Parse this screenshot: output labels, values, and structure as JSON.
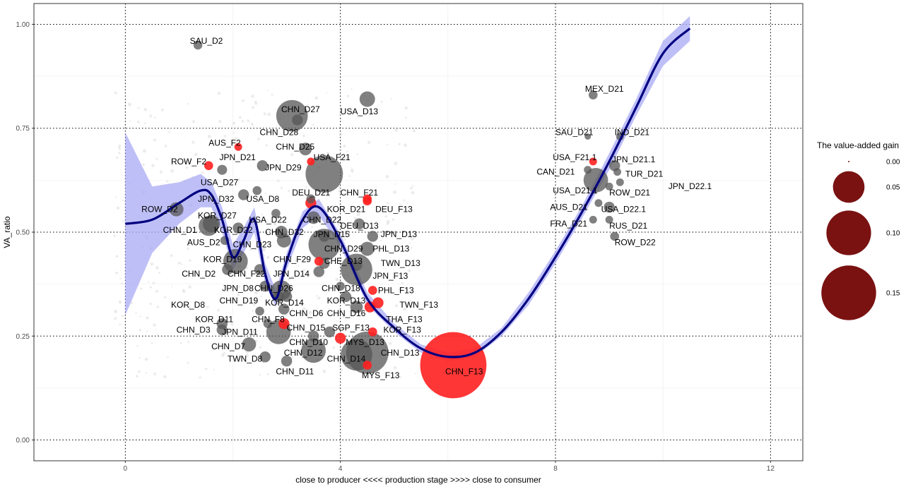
{
  "chart_data": {
    "type": "scatter",
    "title": "",
    "xlabel": "close to producer  <<<<  production stage  >>>>  close to consumer",
    "ylabel": "VA_ratio",
    "xlim": [
      -1.7,
      12.6
    ],
    "ylim": [
      -0.05,
      1.05
    ],
    "x_ticks": [
      0,
      4,
      8,
      12
    ],
    "x_tick_labels": [
      "0",
      "4",
      "8",
      "12"
    ],
    "y_ticks": [
      0,
      0.25,
      0.5,
      0.75,
      1.0
    ],
    "y_tick_labels": [
      "0.00",
      "0.25",
      "0.50",
      "0.75",
      "1.00"
    ],
    "grid": true,
    "dotted_reference_lines": true,
    "colors": {
      "domestic_point": "#555555",
      "foreign_point": "#ff2020",
      "smooth_line": "#000080",
      "smooth_band": "#a9a9f5",
      "legend_point": "#7a1212"
    },
    "legend": {
      "title": "The value-added gain",
      "position": "right",
      "entries": [
        {
          "label": "0.00",
          "value": 0.001
        },
        {
          "label": "0.05",
          "value": 0.05
        },
        {
          "label": "0.10",
          "value": 0.1
        },
        {
          "label": "0.15",
          "value": 0.15
        }
      ]
    },
    "smooth": {
      "x": [
        0,
        0.5,
        1.0,
        1.4,
        1.6,
        1.8,
        2.0,
        2.2,
        2.4,
        2.6,
        2.8,
        3.0,
        3.3,
        3.6,
        4.0,
        4.5,
        5.0,
        5.5,
        6.0,
        6.5,
        7.0,
        7.5,
        8.0,
        8.5,
        9.0,
        9.5,
        10.0,
        10.5
      ],
      "y": [
        0.52,
        0.53,
        0.57,
        0.6,
        0.59,
        0.53,
        0.44,
        0.48,
        0.53,
        0.4,
        0.34,
        0.43,
        0.53,
        0.56,
        0.48,
        0.34,
        0.27,
        0.22,
        0.2,
        0.21,
        0.26,
        0.34,
        0.44,
        0.55,
        0.67,
        0.8,
        0.93,
        0.99
      ],
      "band_half_width": [
        0.22,
        0.08,
        0.05,
        0.04,
        0.03,
        0.03,
        0.03,
        0.03,
        0.03,
        0.025,
        0.02,
        0.02,
        0.02,
        0.02,
        0.015,
        0.015,
        0.01,
        0.01,
        0.01,
        0.01,
        0.01,
        0.015,
        0.015,
        0.015,
        0.02,
        0.02,
        0.03,
        0.03
      ]
    },
    "points": [
      {
        "label": "SAU_D2",
        "x": 1.35,
        "y": 0.95,
        "gain": 0.004,
        "group": "D"
      },
      {
        "label": "MEX_D21",
        "x": 8.7,
        "y": 0.83,
        "gain": 0.004,
        "group": "D"
      },
      {
        "label": "CHN_D27",
        "x": 3.1,
        "y": 0.78,
        "gain": 0.05,
        "group": "D"
      },
      {
        "label": "USA_D13",
        "x": 4.5,
        "y": 0.82,
        "gain": 0.012,
        "group": "D"
      },
      {
        "label": "CHN_D28",
        "x": 3.2,
        "y": 0.77,
        "gain": 0.006,
        "group": "D"
      },
      {
        "label": "SAU_D21",
        "x": 8.6,
        "y": 0.73,
        "gain": 0.002,
        "group": "D"
      },
      {
        "label": "IND_D21",
        "x": 9.2,
        "y": 0.73,
        "gain": 0.003,
        "group": "D"
      },
      {
        "label": "CHN_D25",
        "x": 3.35,
        "y": 0.7,
        "gain": 0.008,
        "group": "D"
      },
      {
        "label": "AUS_F2",
        "x": 2.1,
        "y": 0.705,
        "gain": 0.003,
        "group": "F"
      },
      {
        "label": "USA_F21",
        "x": 3.45,
        "y": 0.67,
        "gain": 0.003,
        "group": "F"
      },
      {
        "label": "JPN_D21",
        "x": 2.55,
        "y": 0.66,
        "gain": 0.006,
        "group": "D"
      },
      {
        "label": "JPN_D29",
        "x": 3.7,
        "y": 0.64,
        "gain": 0.07,
        "group": "D"
      },
      {
        "label": "ROW_F2",
        "x": 1.55,
        "y": 0.66,
        "gain": 0.004,
        "group": "F"
      },
      {
        "label": "USA_F21.1",
        "x": 8.7,
        "y": 0.67,
        "gain": 0.003,
        "group": "F"
      },
      {
        "label": "JPN_D21.1",
        "x": 9.1,
        "y": 0.66,
        "gain": 0.006,
        "group": "D"
      },
      {
        "label": "CAN_D21",
        "x": 8.6,
        "y": 0.65,
        "gain": 0.003,
        "group": "D"
      },
      {
        "label": "TUR_D21",
        "x": 9.15,
        "y": 0.645,
        "gain": 0.003,
        "group": "D"
      },
      {
        "label": "USA_D27",
        "x": 1.8,
        "y": 0.65,
        "gain": 0.005,
        "group": "D"
      },
      {
        "label": "JPN_D22.1",
        "x": 9.2,
        "y": 0.62,
        "gain": 0.003,
        "group": "D"
      },
      {
        "label": "USA_D21.1",
        "x": 8.75,
        "y": 0.625,
        "gain": 0.03,
        "group": "D"
      },
      {
        "label": "ROW_D21",
        "x": 9.0,
        "y": 0.61,
        "gain": 0.003,
        "group": "D"
      },
      {
        "label": "DEU_D21",
        "x": 3.45,
        "y": 0.58,
        "gain": 0.004,
        "group": "D"
      },
      {
        "label": "CHN_F21",
        "x": 4.5,
        "y": 0.58,
        "gain": 0.004,
        "group": "F"
      },
      {
        "label": "JPN_D32",
        "x": 2.2,
        "y": 0.59,
        "gain": 0.006,
        "group": "D"
      },
      {
        "label": "USA_D8",
        "x": 2.45,
        "y": 0.6,
        "gain": 0.004,
        "group": "D"
      },
      {
        "label": "KOR_D21",
        "x": 3.45,
        "y": 0.57,
        "gain": 0.006,
        "group": "F"
      },
      {
        "label": "DEU_F13",
        "x": 4.5,
        "y": 0.575,
        "gain": 0.004,
        "group": "F"
      },
      {
        "label": "AUS_D21",
        "x": 8.8,
        "y": 0.57,
        "gain": 0.003,
        "group": "D"
      },
      {
        "label": "USA_D22.1",
        "x": 9.0,
        "y": 0.56,
        "gain": 0.006,
        "group": "D"
      },
      {
        "label": "ROW_D2",
        "x": 0.95,
        "y": 0.555,
        "gain": 0.01,
        "group": "D"
      },
      {
        "label": "KOR_D27",
        "x": 1.6,
        "y": 0.52,
        "gain": 0.015,
        "group": "D"
      },
      {
        "label": "USA_D22",
        "x": 2.8,
        "y": 0.545,
        "gain": 0.004,
        "group": "D"
      },
      {
        "label": "CHN_D22",
        "x": 3.5,
        "y": 0.535,
        "gain": 0.008,
        "group": "D"
      },
      {
        "label": "FRA_D21",
        "x": 8.7,
        "y": 0.53,
        "gain": 0.003,
        "group": "D"
      },
      {
        "label": "RUS_D21",
        "x": 9.0,
        "y": 0.53,
        "gain": 0.003,
        "group": "D"
      },
      {
        "label": "DEU_D13",
        "x": 4.35,
        "y": 0.52,
        "gain": 0.006,
        "group": "D"
      },
      {
        "label": "CHN_D1",
        "x": 1.55,
        "y": 0.515,
        "gain": 0.02,
        "group": "D"
      },
      {
        "label": "KOR_D22",
        "x": 2.1,
        "y": 0.51,
        "gain": 0.006,
        "group": "D"
      },
      {
        "label": "CHN_D32",
        "x": 2.9,
        "y": 0.5,
        "gain": 0.008,
        "group": "D"
      },
      {
        "label": "JPN_D15",
        "x": 3.7,
        "y": 0.49,
        "gain": 0.006,
        "group": "D"
      },
      {
        "label": "JPN_D13",
        "x": 4.6,
        "y": 0.49,
        "gain": 0.006,
        "group": "D"
      },
      {
        "label": "AUS_D2",
        "x": 1.85,
        "y": 0.48,
        "gain": 0.004,
        "group": "D"
      },
      {
        "label": "CHN_D23",
        "x": 2.95,
        "y": 0.48,
        "gain": 0.01,
        "group": "D"
      },
      {
        "label": "CHN_D29",
        "x": 3.7,
        "y": 0.47,
        "gain": 0.05,
        "group": "D"
      },
      {
        "label": "ROW_D22",
        "x": 9.1,
        "y": 0.49,
        "gain": 0.004,
        "group": "D"
      },
      {
        "label": "PHL_D13",
        "x": 4.5,
        "y": 0.46,
        "gain": 0.01,
        "group": "D"
      },
      {
        "label": "KOR_D19",
        "x": 2.05,
        "y": 0.43,
        "gain": 0.03,
        "group": "D"
      },
      {
        "label": "CHN_F29",
        "x": 3.6,
        "y": 0.43,
        "gain": 0.004,
        "group": "F"
      },
      {
        "label": "CHE_D13",
        "x": 3.7,
        "y": 0.425,
        "gain": 0.006,
        "group": "D"
      },
      {
        "label": "TWN_D13",
        "x": 4.3,
        "y": 0.42,
        "gain": 0.006,
        "group": "D"
      },
      {
        "label": "CHN_D2",
        "x": 1.9,
        "y": 0.41,
        "gain": 0.006,
        "group": "D"
      },
      {
        "label": "CHN_F22",
        "x": 2.5,
        "y": 0.41,
        "gain": 0.006,
        "group": "D"
      },
      {
        "label": "JPN_D14",
        "x": 3.6,
        "y": 0.405,
        "gain": 0.006,
        "group": "D"
      },
      {
        "label": "JPN_F13",
        "x": 4.3,
        "y": 0.41,
        "gain": 0.05,
        "group": "D"
      },
      {
        "label": "JPN_D8",
        "x": 2.6,
        "y": 0.37,
        "gain": 0.006,
        "group": "D"
      },
      {
        "label": "CHN_D26",
        "x": 2.9,
        "y": 0.36,
        "gain": 0.02,
        "group": "D"
      },
      {
        "label": "CHN_D18",
        "x": 4.0,
        "y": 0.37,
        "gain": 0.004,
        "group": "D"
      },
      {
        "label": "PHL_F13",
        "x": 4.6,
        "y": 0.36,
        "gain": 0.004,
        "group": "F"
      },
      {
        "label": "CHN_D19",
        "x": 2.85,
        "y": 0.345,
        "gain": 0.006,
        "group": "D"
      },
      {
        "label": "KOR_D14",
        "x": 3.0,
        "y": 0.345,
        "gain": 0.006,
        "group": "D"
      },
      {
        "label": "KOR_D13",
        "x": 4.1,
        "y": 0.345,
        "gain": 0.006,
        "group": "D"
      },
      {
        "label": "TWN_F13",
        "x": 4.7,
        "y": 0.33,
        "gain": 0.006,
        "group": "F"
      },
      {
        "label": "KOR_D8",
        "x": 2.5,
        "y": 0.31,
        "gain": 0.004,
        "group": "D"
      },
      {
        "label": "CHN_D6",
        "x": 2.95,
        "y": 0.315,
        "gain": 0.006,
        "group": "D"
      },
      {
        "label": "CHN_D16",
        "x": 4.3,
        "y": 0.32,
        "gain": 0.008,
        "group": "D"
      },
      {
        "label": "THA_F13",
        "x": 4.55,
        "y": 0.32,
        "gain": 0.006,
        "group": "F"
      },
      {
        "label": "KOR_D11",
        "x": 1.8,
        "y": 0.28,
        "gain": 0.006,
        "group": "D"
      },
      {
        "label": "CHN_F8",
        "x": 2.65,
        "y": 0.28,
        "gain": 0.004,
        "group": "D"
      },
      {
        "label": "CHN_D15",
        "x": 2.95,
        "y": 0.28,
        "gain": 0.006,
        "group": "F"
      },
      {
        "label": "SGP_F13",
        "x": 3.8,
        "y": 0.26,
        "gain": 0.006,
        "group": "D"
      },
      {
        "label": "KOR_F13",
        "x": 4.6,
        "y": 0.26,
        "gain": 0.004,
        "group": "F"
      },
      {
        "label": "CHN_D3",
        "x": 1.8,
        "y": 0.265,
        "gain": 0.006,
        "group": "D"
      },
      {
        "label": "JPN_D11",
        "x": 2.85,
        "y": 0.26,
        "gain": 0.03,
        "group": "D"
      },
      {
        "label": "CHN_D10",
        "x": 3.5,
        "y": 0.25,
        "gain": 0.006,
        "group": "D"
      },
      {
        "label": "MYS_D13",
        "x": 4.0,
        "y": 0.245,
        "gain": 0.006,
        "group": "F"
      },
      {
        "label": "CHN_D7",
        "x": 2.3,
        "y": 0.23,
        "gain": 0.01,
        "group": "D"
      },
      {
        "label": "CHN_D12",
        "x": 3.5,
        "y": 0.215,
        "gain": 0.03,
        "group": "D"
      },
      {
        "label": "CHN_D14",
        "x": 4.3,
        "y": 0.205,
        "gain": 0.05,
        "group": "D"
      },
      {
        "label": "CHN_D13",
        "x": 4.5,
        "y": 0.21,
        "gain": 0.09,
        "group": "D"
      },
      {
        "label": "TWN_D8",
        "x": 2.6,
        "y": 0.2,
        "gain": 0.006,
        "group": "D"
      },
      {
        "label": "CHN_D11",
        "x": 3.0,
        "y": 0.19,
        "gain": 0.006,
        "group": "D"
      },
      {
        "label": "MYS_F13",
        "x": 4.5,
        "y": 0.18,
        "gain": 0.004,
        "group": "F"
      },
      {
        "label": "CHN_F13",
        "x": 6.1,
        "y": 0.18,
        "gain": 0.22,
        "group": "F"
      }
    ],
    "labels": [
      {
        "text": "SAU_D2",
        "x": 1.2,
        "y": 0.96
      },
      {
        "text": "MEX_D21",
        "x": 8.55,
        "y": 0.845
      },
      {
        "text": "CHN_D27",
        "x": 2.9,
        "y": 0.795
      },
      {
        "text": "USA_D13",
        "x": 4.0,
        "y": 0.79
      },
      {
        "text": "CHN_D28",
        "x": 2.5,
        "y": 0.74
      },
      {
        "text": "SAU_D21",
        "x": 8.0,
        "y": 0.74
      },
      {
        "text": "IND_D21",
        "x": 9.1,
        "y": 0.74
      },
      {
        "text": "CHN_D25",
        "x": 2.8,
        "y": 0.705
      },
      {
        "text": "AUS_F2",
        "x": 1.55,
        "y": 0.715
      },
      {
        "text": "USA_F21",
        "x": 3.5,
        "y": 0.68
      },
      {
        "text": "JPN_D21",
        "x": 1.75,
        "y": 0.68
      },
      {
        "text": "JPN_D29",
        "x": 2.6,
        "y": 0.655
      },
      {
        "text": "ROW_F2",
        "x": 0.85,
        "y": 0.67
      },
      {
        "text": "USA_F21.1",
        "x": 7.95,
        "y": 0.68
      },
      {
        "text": "JPN_D21.1",
        "x": 9.05,
        "y": 0.675
      },
      {
        "text": "CAN_D21",
        "x": 7.65,
        "y": 0.645
      },
      {
        "text": "TUR_D21",
        "x": 9.3,
        "y": 0.64
      },
      {
        "text": "USA_D27",
        "x": 1.4,
        "y": 0.62
      },
      {
        "text": "JPN_D22.1",
        "x": 10.1,
        "y": 0.61
      },
      {
        "text": "USA_D21.1",
        "x": 7.95,
        "y": 0.6
      },
      {
        "text": "ROW_D21",
        "x": 9.0,
        "y": 0.595
      },
      {
        "text": "DEU_D21",
        "x": 3.1,
        "y": 0.595
      },
      {
        "text": "CHN_F21",
        "x": 4.0,
        "y": 0.595
      },
      {
        "text": "JPN_D32",
        "x": 1.35,
        "y": 0.58
      },
      {
        "text": "USA_D8",
        "x": 2.25,
        "y": 0.58
      },
      {
        "text": "KOR_D21",
        "x": 3.75,
        "y": 0.555
      },
      {
        "text": "DEU_F13",
        "x": 4.65,
        "y": 0.555
      },
      {
        "text": "AUS_D21",
        "x": 7.9,
        "y": 0.56
      },
      {
        "text": "USA_D22.1",
        "x": 8.85,
        "y": 0.555
      },
      {
        "text": "ROW_D2",
        "x": 0.3,
        "y": 0.555
      },
      {
        "text": "KOR_D27",
        "x": 1.35,
        "y": 0.54
      },
      {
        "text": "USA_D22",
        "x": 2.3,
        "y": 0.53
      },
      {
        "text": "CHN_D22",
        "x": 3.3,
        "y": 0.53
      },
      {
        "text": "FRA_D21",
        "x": 7.9,
        "y": 0.52
      },
      {
        "text": "RUS_D21",
        "x": 9.0,
        "y": 0.515
      },
      {
        "text": "DEU_D13",
        "x": 4.0,
        "y": 0.515
      },
      {
        "text": "CHN_D1",
        "x": 0.7,
        "y": 0.505
      },
      {
        "text": "KOR_D22",
        "x": 1.65,
        "y": 0.505
      },
      {
        "text": "CHN_D32",
        "x": 2.6,
        "y": 0.5
      },
      {
        "text": "JPN_D15",
        "x": 3.5,
        "y": 0.495
      },
      {
        "text": "JPN_D13",
        "x": 4.75,
        "y": 0.495
      },
      {
        "text": "AUS_D2",
        "x": 1.15,
        "y": 0.475
      },
      {
        "text": "CHN_D23",
        "x": 2.0,
        "y": 0.47
      },
      {
        "text": "CHN_D29",
        "x": 3.7,
        "y": 0.46
      },
      {
        "text": "ROW_D22",
        "x": 9.1,
        "y": 0.475
      },
      {
        "text": "PHL_D13",
        "x": 4.6,
        "y": 0.46
      },
      {
        "text": "KOR_D19",
        "x": 1.45,
        "y": 0.435
      },
      {
        "text": "CHN_F29",
        "x": 2.75,
        "y": 0.435
      },
      {
        "text": "CHE_D13",
        "x": 3.7,
        "y": 0.43
      },
      {
        "text": "TWN_D13",
        "x": 4.75,
        "y": 0.425
      },
      {
        "text": "CHN_D2",
        "x": 1.05,
        "y": 0.4
      },
      {
        "text": "CHN_F22",
        "x": 1.9,
        "y": 0.4
      },
      {
        "text": "JPN_D14",
        "x": 2.75,
        "y": 0.4
      },
      {
        "text": "JPN_F13",
        "x": 4.6,
        "y": 0.395
      },
      {
        "text": "JPN_D8",
        "x": 1.8,
        "y": 0.365
      },
      {
        "text": "CHN_D26",
        "x": 2.4,
        "y": 0.365
      },
      {
        "text": "CHN_D18",
        "x": 3.65,
        "y": 0.365
      },
      {
        "text": "PHL_F13",
        "x": 4.7,
        "y": 0.36
      },
      {
        "text": "CHN_D19",
        "x": 1.75,
        "y": 0.335
      },
      {
        "text": "KOR_D14",
        "x": 2.6,
        "y": 0.33
      },
      {
        "text": "KOR_D13",
        "x": 3.75,
        "y": 0.335
      },
      {
        "text": "TWN_F13",
        "x": 5.1,
        "y": 0.325
      },
      {
        "text": "KOR_D8",
        "x": 0.85,
        "y": 0.325
      },
      {
        "text": "CHN_D6",
        "x": 3.05,
        "y": 0.305
      },
      {
        "text": "CHN_D16",
        "x": 3.75,
        "y": 0.305
      },
      {
        "text": "THA_F13",
        "x": 4.85,
        "y": 0.29
      },
      {
        "text": "KOR_D11",
        "x": 1.3,
        "y": 0.29
      },
      {
        "text": "CHN_F8",
        "x": 2.35,
        "y": 0.29
      },
      {
        "text": "CHN_D15",
        "x": 3.0,
        "y": 0.27
      },
      {
        "text": "SGP_F13",
        "x": 3.85,
        "y": 0.27
      },
      {
        "text": "KOR_F13",
        "x": 4.8,
        "y": 0.265
      },
      {
        "text": "CHN_D3",
        "x": 0.95,
        "y": 0.265
      },
      {
        "text": "JPN_D11",
        "x": 1.8,
        "y": 0.26
      },
      {
        "text": "CHN_D10",
        "x": 3.05,
        "y": 0.235
      },
      {
        "text": "MYS_D13",
        "x": 4.1,
        "y": 0.235
      },
      {
        "text": "CHN_D7",
        "x": 1.6,
        "y": 0.225
      },
      {
        "text": "CHN_D12",
        "x": 2.95,
        "y": 0.21
      },
      {
        "text": "CHN_D14",
        "x": 3.75,
        "y": 0.195
      },
      {
        "text": "CHN_D13",
        "x": 4.75,
        "y": 0.21
      },
      {
        "text": "TWN_D8",
        "x": 1.9,
        "y": 0.195
      },
      {
        "text": "CHN_D11",
        "x": 2.8,
        "y": 0.165
      },
      {
        "text": "MYS_F13",
        "x": 4.4,
        "y": 0.155
      },
      {
        "text": "CHN_F13",
        "x": 5.95,
        "y": 0.165
      }
    ]
  }
}
